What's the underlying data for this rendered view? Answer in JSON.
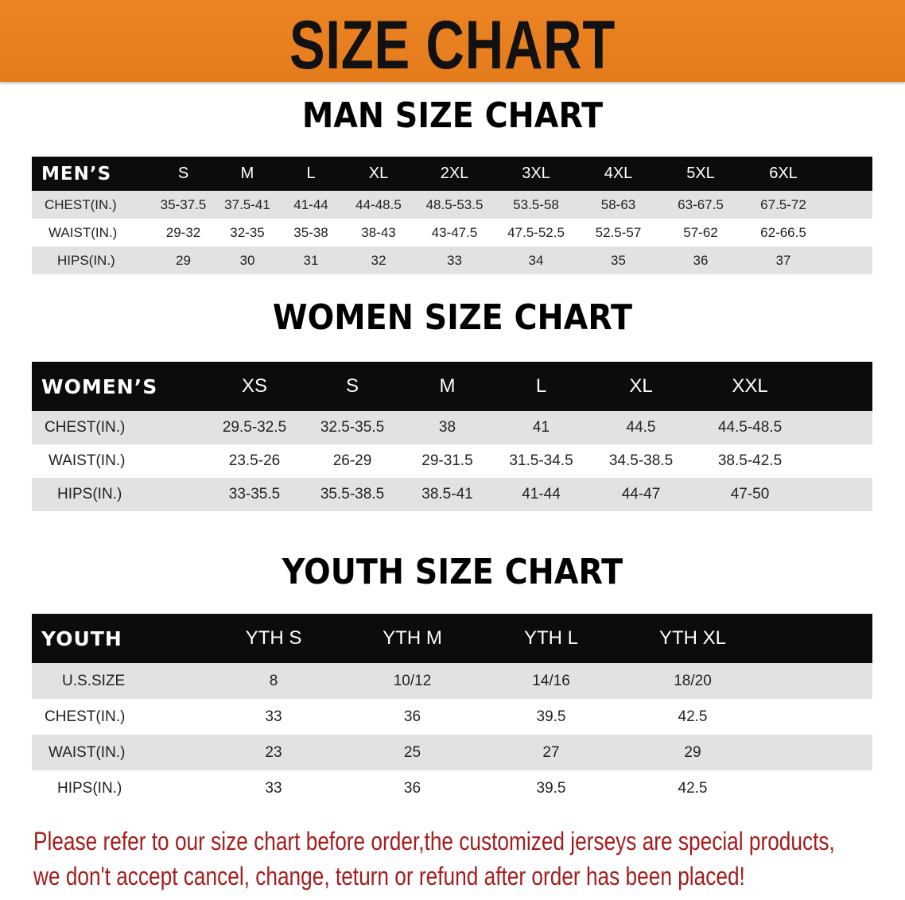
{
  "banner": {
    "title": "SIZE CHART",
    "color": "#E8801E"
  },
  "men": {
    "title": "MAN SIZE CHART",
    "header": "MEN’S",
    "sizes": [
      "S",
      "M",
      "L",
      "XL",
      "2XL",
      "3XL",
      "4XL",
      "5XL",
      "6XL"
    ],
    "rows": [
      {
        "label": "CHEST(IN.)",
        "values": [
          "35-37.5",
          "37.5-41",
          "41-44",
          "44-48.5",
          "48.5-53.5",
          "53.5-58",
          "58-63",
          "63-67.5",
          "67.5-72"
        ]
      },
      {
        "label": "WAIST(IN.)",
        "values": [
          "29-32",
          "32-35",
          "35-38",
          "38-43",
          "43-47.5",
          "47.5-52.5",
          "52.5-57",
          "57-62",
          "62-66.5"
        ]
      },
      {
        "label": "HIPS(IN.)",
        "values": [
          "29",
          "30",
          "31",
          "32",
          "33",
          "34",
          "35",
          "36",
          "37"
        ]
      }
    ]
  },
  "women": {
    "title": "WOMEN SIZE CHART",
    "header": "WOMEN’S",
    "sizes": [
      "XS",
      "S",
      "M",
      "L",
      "XL",
      "XXL"
    ],
    "rows": [
      {
        "label": "CHEST(IN.)",
        "values": [
          "29.5-32.5",
          "32.5-35.5",
          "38",
          "41",
          "44.5",
          "44.5-48.5"
        ]
      },
      {
        "label": "WAIST(IN.)",
        "values": [
          "23.5-26",
          "26-29",
          "29-31.5",
          "31.5-34.5",
          "34.5-38.5",
          "38.5-42.5"
        ]
      },
      {
        "label": "HIPS(IN.)",
        "values": [
          "33-35.5",
          "35.5-38.5",
          "38.5-41",
          "41-44",
          "44-47",
          "47-50"
        ]
      }
    ]
  },
  "youth": {
    "title": "YOUTH SIZE CHART",
    "header": "YOUTH",
    "sizes": [
      "YTH S",
      "YTH M",
      "YTH L",
      "YTH XL"
    ],
    "rows": [
      {
        "label": "U.S.SIZE",
        "values": [
          "8",
          "10/12",
          "14/16",
          "18/20"
        ]
      },
      {
        "label": "CHEST(IN.)",
        "values": [
          "33",
          "36",
          "39.5",
          "42.5"
        ]
      },
      {
        "label": "WAIST(IN.)",
        "values": [
          "23",
          "25",
          "27",
          "29"
        ]
      },
      {
        "label": "HIPS(IN.)",
        "values": [
          "33",
          "36",
          "39.5",
          "42.5"
        ]
      }
    ]
  },
  "footer": {
    "line1": "Please refer to our size chart before order,the customized jerseys are special products,",
    "line2": "we don't accept cancel, change, teturn or refund after order has been placed!",
    "color": "#A51C1C"
  }
}
